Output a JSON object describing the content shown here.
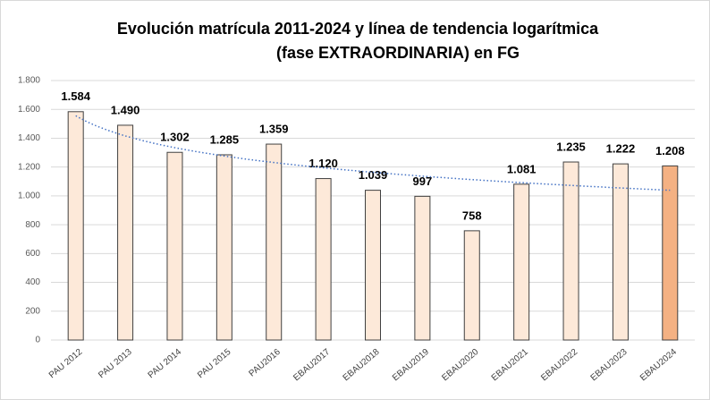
{
  "chart_data": {
    "type": "bar",
    "title": [
      "Evolución matrícula 2011-2024 y línea de tendencia logarítmica",
      "(fase EXTRAORDINARIA) en FG"
    ],
    "categories": [
      "PAU 2012",
      "PAU 2013",
      "PAU 2014",
      "PAU 2015",
      "PAU2016",
      "EBAU2017",
      "EBAU2018",
      "EBAU2019",
      "EBAU2020",
      "EBAU2021",
      "EBAU2022",
      "EBAU2023",
      "EBAU2024"
    ],
    "values": [
      1584,
      1490,
      1302,
      1285,
      1359,
      1120,
      1039,
      997,
      758,
      1081,
      1235,
      1222,
      1208
    ],
    "value_labels": [
      "1.584",
      "1.490",
      "1.302",
      "1.285",
      "1.359",
      "1.120",
      "1.039",
      "997",
      "758",
      "1.081",
      "1.235",
      "1.222",
      "1.208"
    ],
    "colors": [
      "#fde9d9",
      "#fde9d9",
      "#fde9d9",
      "#fde9d9",
      "#fde9d9",
      "#fde9d9",
      "#fde9d9",
      "#fde9d9",
      "#fde9d9",
      "#fde9d9",
      "#fde9d9",
      "#fde9d9",
      "#f4b183"
    ],
    "ylim": [
      0,
      1800
    ],
    "yticks": [
      0,
      200,
      400,
      600,
      800,
      {
        "value": 1000,
        "label": "1.000"
      },
      {
        "value": 1200,
        "label": "1.200"
      },
      {
        "value": 1400,
        "label": "1.400"
      },
      {
        "value": 1600,
        "label": "1.600"
      },
      {
        "value": 1800,
        "label": "1.800"
      }
    ],
    "grid": true,
    "trendline": "logarithmic",
    "trendline_color": "#4472c4"
  }
}
